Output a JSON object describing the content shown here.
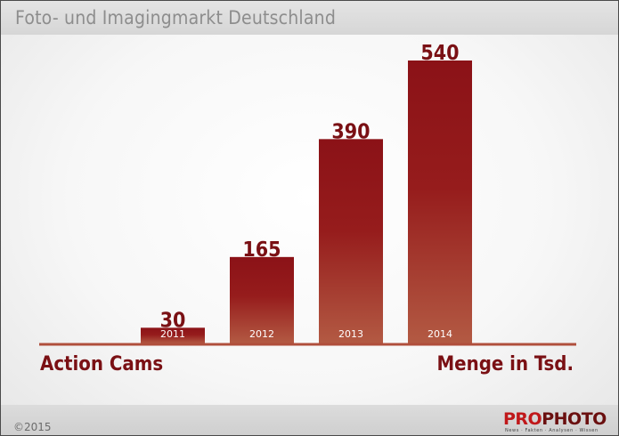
{
  "title": "Foto- und Imagingmarkt Deutschland",
  "footer": {
    "copyright": "©2015",
    "logo": {
      "part1": "PRO",
      "part2": "PHOTO",
      "tagline": "News · Fakten · Analysen · Wissen"
    }
  },
  "colors": {
    "bar_top": "#8b1217",
    "bar_bottom": "#b35a43",
    "baseline": "#b04f3c",
    "label": "#7a1014",
    "year_label": "#ffffff"
  },
  "chart_data": {
    "type": "bar",
    "title": "Foto- und Imagingmarkt Deutschland",
    "categories": [
      "2011",
      "2012",
      "2013",
      "2014"
    ],
    "values": [
      30,
      165,
      390,
      540
    ],
    "xlabel": "Action Cams",
    "ylabel": "Menge in Tsd.",
    "ylim": [
      0,
      540
    ],
    "grid": false,
    "legend": "none"
  }
}
